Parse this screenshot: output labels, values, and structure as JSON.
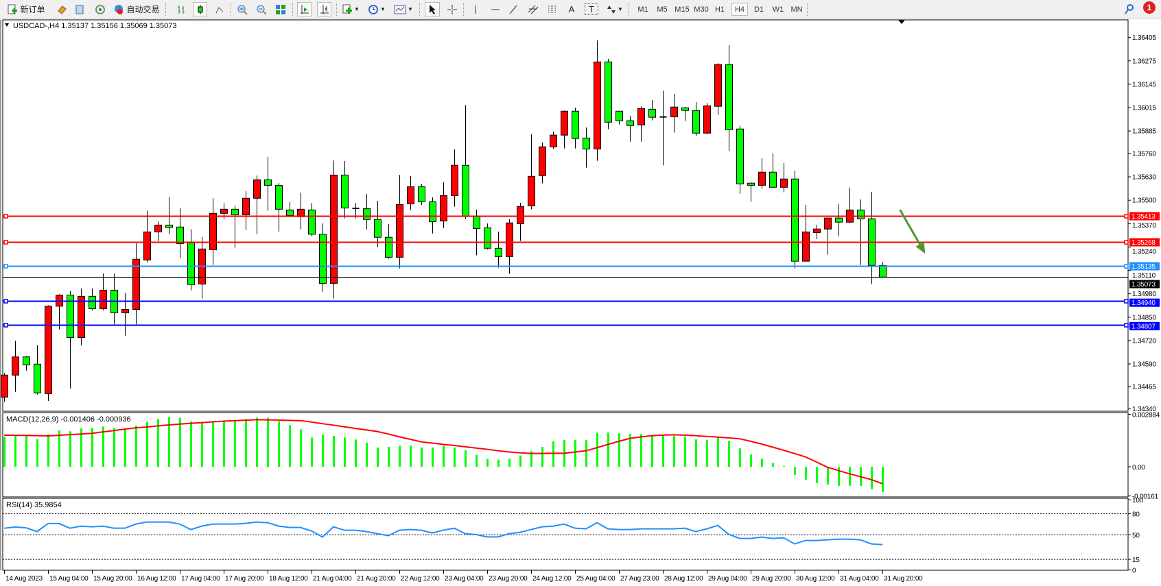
{
  "toolbar": {
    "new_order_label": "新订单",
    "auto_trading_label": "自动交易",
    "icons": [
      "new-order-icon",
      "gold-icon",
      "history-icon",
      "signal-icon",
      "auto-trading-icon",
      "bar-chart-icon",
      "candlestick-icon",
      "line-chart-icon",
      "zoom-in-icon",
      "zoom-out-icon",
      "tile-windows-icon",
      "chart-shift-icon",
      "autoscroll-icon",
      "indicators-icon",
      "periods-icon",
      "templates-icon",
      "cursor-icon",
      "crosshair-icon",
      "vertical-line-icon",
      "horizontal-line-icon",
      "trendline-icon",
      "equidistant-channel-icon",
      "fibonacci-icon",
      "text-icon",
      "text-label-icon",
      "arrows-icon"
    ],
    "text_tool_label": "A",
    "text_label_tool_label": "T",
    "timeframes": [
      "M1",
      "M5",
      "M15",
      "M30",
      "H1",
      "H4",
      "D1",
      "W1",
      "MN"
    ],
    "active_timeframe": "H4",
    "notification_count": "1"
  },
  "chart": {
    "header": "USDCAD-,H4  1.35137 1.35156 1.35069 1.35073",
    "macd_label": "MACD(12,26,9) -0.001406 -0.000936",
    "rsi_label": "RSI(14) 35.9854"
  },
  "colors": {
    "bull": "#ff0000",
    "bear": "#00ff00",
    "resistance": "#ff0000",
    "pivot": "#1e90ff",
    "support": "#0000ff",
    "current_price": "#000000",
    "macd_hist": "#00ff00",
    "macd_signal": "#ff0000",
    "rsi": "#1e90ff",
    "arrow": "#4a9a2e"
  },
  "chart_data": {
    "type": "candlestick",
    "symbol": "USDCAD-",
    "timeframe": "H4",
    "ohlc_fields": [
      "open",
      "high",
      "low",
      "close"
    ],
    "candles": [
      [
        1.34406,
        1.3454,
        1.3438,
        1.34528
      ],
      [
        1.34528,
        1.34718,
        1.34435,
        1.34629
      ],
      [
        1.34629,
        1.34634,
        1.34553,
        1.34585
      ],
      [
        1.34589,
        1.34695,
        1.3442,
        1.34429
      ],
      [
        1.34425,
        1.34916,
        1.34384,
        1.34911
      ],
      [
        1.34911,
        1.34977,
        1.34782,
        1.34973
      ],
      [
        1.34973,
        1.34996,
        1.34454,
        1.34737
      ],
      [
        1.34737,
        1.35009,
        1.34694,
        1.34966
      ],
      [
        1.34966,
        1.35009,
        1.34888,
        1.34897
      ],
      [
        1.34897,
        1.35093,
        1.34888,
        1.35
      ],
      [
        1.35,
        1.35093,
        1.3481,
        1.34874
      ],
      [
        1.34874,
        1.34985,
        1.34747,
        1.34893
      ],
      [
        1.34893,
        1.3526,
        1.3481,
        1.35172
      ],
      [
        1.35168,
        1.35442,
        1.35155,
        1.35324
      ],
      [
        1.35324,
        1.35382,
        1.35273,
        1.35362
      ],
      [
        1.35362,
        1.35518,
        1.35311,
        1.35349
      ],
      [
        1.35351,
        1.35457,
        1.35178,
        1.35259
      ],
      [
        1.35263,
        1.35339,
        1.34999,
        1.35031
      ],
      [
        1.35034,
        1.35295,
        1.34953,
        1.35229
      ],
      [
        1.35225,
        1.35511,
        1.3514,
        1.35427
      ],
      [
        1.35427,
        1.35484,
        1.35395,
        1.3545
      ],
      [
        1.3545,
        1.3547,
        1.35235,
        1.35419
      ],
      [
        1.35419,
        1.3555,
        1.35334,
        1.35511
      ],
      [
        1.35511,
        1.35638,
        1.35311,
        1.35614
      ],
      [
        1.35614,
        1.35741,
        1.35441,
        1.35583
      ],
      [
        1.35583,
        1.35596,
        1.35326,
        1.3545
      ],
      [
        1.35446,
        1.35489,
        1.35406,
        1.35415
      ],
      [
        1.35408,
        1.35542,
        1.35338,
        1.3545
      ],
      [
        1.35446,
        1.35485,
        1.353,
        1.35311
      ],
      [
        1.35311,
        1.35371,
        1.34991,
        1.35038
      ],
      [
        1.35038,
        1.35721,
        1.34953,
        1.3564
      ],
      [
        1.3564,
        1.35718,
        1.35399,
        1.35457
      ],
      [
        1.35455,
        1.35484,
        1.35399,
        1.35455
      ],
      [
        1.35453,
        1.35535,
        1.35338,
        1.35393
      ],
      [
        1.35393,
        1.35497,
        1.35239,
        1.35294
      ],
      [
        1.35294,
        1.35367,
        1.35175,
        1.35183
      ],
      [
        1.35183,
        1.35641,
        1.35121,
        1.35476
      ],
      [
        1.3548,
        1.35634,
        1.35445,
        1.35575
      ],
      [
        1.35575,
        1.35592,
        1.35473,
        1.35492
      ],
      [
        1.35492,
        1.35516,
        1.35315,
        1.35381
      ],
      [
        1.35385,
        1.356,
        1.35346,
        1.35526
      ],
      [
        1.35526,
        1.35782,
        1.35464,
        1.35694
      ],
      [
        1.35694,
        1.36029,
        1.35397,
        1.35413
      ],
      [
        1.35413,
        1.35448,
        1.35194,
        1.35343
      ],
      [
        1.35347,
        1.35371,
        1.35227,
        1.35233
      ],
      [
        1.35233,
        1.35326,
        1.35125,
        1.35187
      ],
      [
        1.35187,
        1.35394,
        1.35091,
        1.35374
      ],
      [
        1.3537,
        1.35486,
        1.35274,
        1.35465
      ],
      [
        1.35469,
        1.35867,
        1.35449,
        1.35633
      ],
      [
        1.35637,
        1.35821,
        1.35594,
        1.35797
      ],
      [
        1.35797,
        1.35881,
        1.35785,
        1.35862
      ],
      [
        1.35862,
        1.35999,
        1.35788,
        1.35995
      ],
      [
        1.35995,
        1.36015,
        1.35788,
        1.35843
      ],
      [
        1.35846,
        1.35905,
        1.35681,
        1.35785
      ],
      [
        1.35785,
        1.36389,
        1.35719,
        1.36269
      ],
      [
        1.36269,
        1.36286,
        1.35895,
        1.35934
      ],
      [
        1.35995,
        1.35995,
        1.35921,
        1.35942
      ],
      [
        1.35942,
        1.35968,
        1.35826,
        1.35915
      ],
      [
        1.35919,
        1.36022,
        1.35826,
        1.3601
      ],
      [
        1.36006,
        1.36057,
        1.35944,
        1.35961
      ],
      [
        1.35963,
        1.36109,
        1.35694,
        1.35963
      ],
      [
        1.35964,
        1.36091,
        1.35876,
        1.36018
      ],
      [
        1.36014,
        1.36018,
        1.3594,
        1.35999
      ],
      [
        1.35999,
        1.36046,
        1.35856,
        1.35873
      ],
      [
        1.35873,
        1.36041,
        1.35868,
        1.36025
      ],
      [
        1.36022,
        1.36262,
        1.35975,
        1.36254
      ],
      [
        1.36254,
        1.36362,
        1.35773,
        1.35892
      ],
      [
        1.35896,
        1.35915,
        1.35536,
        1.35591
      ],
      [
        1.35595,
        1.35599,
        1.35491,
        1.35583
      ],
      [
        1.35583,
        1.35733,
        1.35563,
        1.35656
      ],
      [
        1.35656,
        1.3576,
        1.35572,
        1.35572
      ],
      [
        1.35572,
        1.35707,
        1.35544,
        1.35618
      ],
      [
        1.35618,
        1.35665,
        1.35121,
        1.35161
      ],
      [
        1.35161,
        1.35474,
        1.35161,
        1.35324
      ],
      [
        1.3532,
        1.35364,
        1.35285,
        1.3534
      ],
      [
        1.3534,
        1.35401,
        1.35197,
        1.35401
      ],
      [
        1.35401,
        1.35478,
        1.353,
        1.35378
      ],
      [
        1.35378,
        1.3557,
        1.35374,
        1.35446
      ],
      [
        1.35446,
        1.35505,
        1.3514,
        1.35397
      ],
      [
        1.35397,
        1.35547,
        1.35034,
        1.35138
      ],
      [
        1.35137,
        1.35156,
        1.35069,
        1.35073
      ]
    ],
    "price_axis": {
      "range": [
        1.3434,
        1.36405
      ],
      "ticks": [
        "1.36405",
        "1.36275",
        "1.36145",
        "1.36015",
        "1.35885",
        "1.35760",
        "1.35630",
        "1.35500",
        "1.35370",
        "1.35240",
        "1.35110",
        "1.34980",
        "1.34850",
        "1.34720",
        "1.34590",
        "1.34465",
        "1.34340"
      ]
    },
    "horizontal_lines": [
      {
        "price": "1.35413",
        "role": "resistance"
      },
      {
        "price": "1.35268",
        "role": "resistance"
      },
      {
        "price": "1.35135",
        "role": "pivot"
      },
      {
        "price": "1.34940",
        "role": "support"
      },
      {
        "price": "1.34807",
        "role": "support"
      }
    ],
    "current_price": "1.35073",
    "annotation": {
      "type": "arrow",
      "direction": "down",
      "from_bar": 81.6,
      "from_price": 1.35447,
      "to_bar": 83.9,
      "to_price": 1.35203
    },
    "time_axis": [
      {
        "at": 0,
        "label": "14 Aug 2023"
      },
      {
        "at": 4,
        "label": "15 Aug 04:00"
      },
      {
        "at": 8,
        "label": "15 Aug 20:00"
      },
      {
        "at": 12,
        "label": "16 Aug 12:00"
      },
      {
        "at": 16,
        "label": "17 Aug 04:00"
      },
      {
        "at": 20,
        "label": "17 Aug 20:00"
      },
      {
        "at": 24,
        "label": "18 Aug 12:00"
      },
      {
        "at": 28,
        "label": "21 Aug 04:00"
      },
      {
        "at": 32,
        "label": "21 Aug 20:00"
      },
      {
        "at": 36,
        "label": "22 Aug 12:00"
      },
      {
        "at": 40,
        "label": "23 Aug 04:00"
      },
      {
        "at": 44,
        "label": "23 Aug 20:00"
      },
      {
        "at": 48,
        "label": "24 Aug 12:00"
      },
      {
        "at": 52,
        "label": "25 Aug 04:00"
      },
      {
        "at": 56,
        "label": "27 Aug 23:00"
      },
      {
        "at": 60,
        "label": "28 Aug 12:00"
      },
      {
        "at": 64,
        "label": "29 Aug 04:00"
      },
      {
        "at": 68,
        "label": "29 Aug 20:00"
      },
      {
        "at": 72,
        "label": "30 Aug 12:00"
      },
      {
        "at": 76,
        "label": "31 Aug 04:00"
      },
      {
        "at": 80,
        "label": "31 Aug 20:00"
      }
    ],
    "macd": {
      "params": "12,26,9",
      "axis_ticks": [
        {
          "value": 0.002884,
          "label": "0.002884"
        },
        {
          "value": 0,
          "label": "0.00"
        },
        {
          "value": -0.00161,
          "label": "-0.00161"
        }
      ],
      "histogram": [
        0.00163,
        0.00171,
        0.00168,
        0.00151,
        0.00178,
        0.002,
        0.00195,
        0.00211,
        0.00214,
        0.00221,
        0.00214,
        0.00208,
        0.00226,
        0.00248,
        0.00263,
        0.00274,
        0.0027,
        0.00249,
        0.00241,
        0.00249,
        0.00251,
        0.00253,
        0.00263,
        0.0027,
        0.0027,
        0.0025,
        0.00229,
        0.00206,
        0.00161,
        0.00178,
        0.0017,
        0.00161,
        0.0015,
        0.00133,
        0.00106,
        0.0011,
        0.00116,
        0.00116,
        0.00106,
        0.00106,
        0.00116,
        0.00106,
        0.00091,
        0.00065,
        0.00043,
        0.00039,
        0.00045,
        0.00061,
        0.00086,
        0.00109,
        0.0014,
        0.00148,
        0.00148,
        0.00146,
        0.00188,
        0.00188,
        0.00184,
        0.0018,
        0.0018,
        0.00176,
        0.00173,
        0.00169,
        0.00165,
        0.0015,
        0.00146,
        0.00161,
        0.00143,
        0.00101,
        0.00068,
        0.00044,
        0.0002,
        4e-05,
        -0.00045,
        -0.00071,
        -0.0009,
        -0.00098,
        -0.00105,
        -0.00105,
        -0.00105,
        -0.00124,
        -0.001406
      ],
      "signal": [
        0.00174,
        0.00173,
        0.00172,
        0.00171,
        0.0017,
        0.00173,
        0.00177,
        0.0018,
        0.00184,
        0.00192,
        0.00199,
        0.00207,
        0.00214,
        0.00219,
        0.00225,
        0.0023,
        0.00235,
        0.00239,
        0.00243,
        0.00247,
        0.00251,
        0.00254,
        0.00256,
        0.00259,
        0.00258,
        0.00257,
        0.00255,
        0.00254,
        0.00246,
        0.00237,
        0.00229,
        0.0022,
        0.00211,
        0.00203,
        0.00194,
        0.0018,
        0.00165,
        0.00151,
        0.00137,
        0.0013,
        0.00123,
        0.00117,
        0.0011,
        0.00103,
        0.00096,
        0.00088,
        0.00081,
        0.00077,
        0.00073,
        0.00073,
        0.00074,
        0.00074,
        0.00081,
        0.00088,
        0.00105,
        0.00123,
        0.0014,
        0.00156,
        0.00164,
        0.00171,
        0.00174,
        0.00176,
        0.00174,
        0.00171,
        0.00167,
        0.00163,
        0.00159,
        0.00154,
        0.0014,
        0.00125,
        0.00108,
        0.00091,
        0.00073,
        0.00054,
        0.00026,
        -3e-05,
        -0.00021,
        -0.00039,
        -0.00055,
        -0.00071,
        -0.000936
      ]
    },
    "rsi": {
      "period": 14,
      "levels": [
        80,
        50,
        15
      ],
      "axis_ticks": [
        "100",
        "80",
        "50",
        "15",
        "0"
      ],
      "values": [
        59.4,
        61,
        60,
        54.6,
        66,
        66,
        59.4,
        62.4,
        61.4,
        62.4,
        59.4,
        59.4,
        65.3,
        68.2,
        68.2,
        68.2,
        65.3,
        57.5,
        62.4,
        65.3,
        65.3,
        65.3,
        66.3,
        68.2,
        67.3,
        62.4,
        60.4,
        60.4,
        55.5,
        46.7,
        61.4,
        56.5,
        56.5,
        54.6,
        51.6,
        48.7,
        56.5,
        57.5,
        56.5,
        52.6,
        56.5,
        59.4,
        51.6,
        50.3,
        47,
        47,
        51.6,
        53.6,
        57.5,
        61.4,
        62.4,
        65.3,
        59.4,
        58.5,
        67.3,
        58.5,
        57.5,
        57.5,
        58.5,
        58.5,
        58.5,
        58.5,
        59.4,
        54.6,
        58.5,
        63.4,
        50.7,
        44.8,
        44.8,
        46.7,
        44.8,
        45.8,
        37,
        41.9,
        41.9,
        42.8,
        43.8,
        43.8,
        42.8,
        37,
        35.9854
      ]
    }
  }
}
